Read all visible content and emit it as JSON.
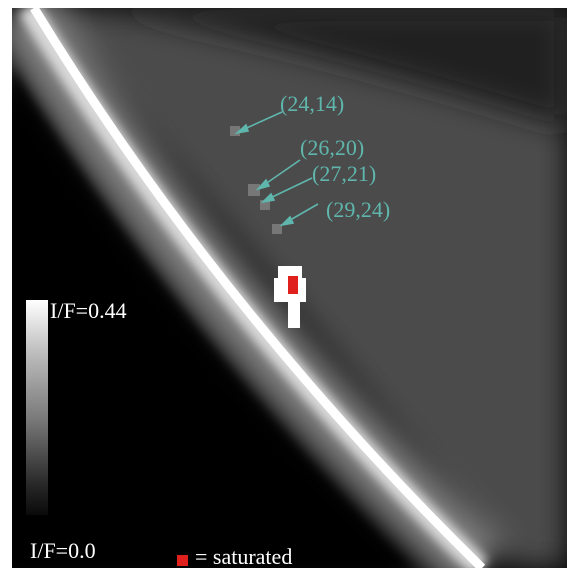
{
  "labels": {
    "points": [
      "(24,14)",
      "(26,20)",
      "(27,21)",
      "(29,24)"
    ],
    "scale_max": "I/F=0.44",
    "scale_min": "I/F=0.0",
    "legend_text": "= saturated"
  },
  "colors": {
    "annotation": "#5fb6ad",
    "saturated": "#e0201c",
    "background": "#000000",
    "text_on_image": "#ffffff"
  },
  "icons": {
    "legend": "red-square-icon",
    "arrow": "arrow-icon"
  }
}
